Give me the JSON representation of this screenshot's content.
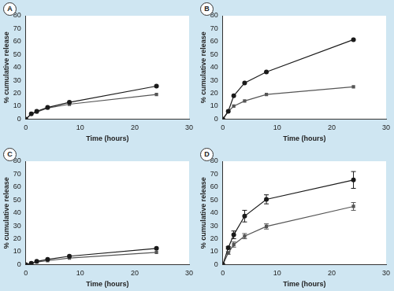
{
  "chart_data": [
    {
      "type": "line",
      "title": "A",
      "x_label": "Time (hours)",
      "y_label": "% cumulative release",
      "x": [
        0,
        1,
        2,
        4,
        8,
        24
      ],
      "xlim": [
        0,
        30
      ],
      "xticks": [
        0,
        10,
        20,
        30
      ],
      "ylim": [
        0,
        80
      ],
      "yticks": [
        0,
        10,
        20,
        30,
        40,
        50,
        60,
        70,
        80
      ],
      "grid": false,
      "series": [
        {
          "color": "#1a1a1a",
          "marker": "circle",
          "values": [
            0,
            4,
            6,
            9,
            13,
            25.5
          ]
        },
        {
          "color": "#555555",
          "marker": "square",
          "values": [
            0,
            4,
            5.5,
            8.5,
            11.5,
            19
          ]
        }
      ]
    },
    {
      "type": "line",
      "title": "B",
      "x_label": "Time (hours)",
      "y_label": "% cumulative release",
      "x": [
        0,
        1,
        2,
        4,
        8,
        24
      ],
      "xlim": [
        0,
        30
      ],
      "xticks": [
        0,
        10,
        20,
        30
      ],
      "ylim": [
        0,
        80
      ],
      "yticks": [
        0,
        10,
        20,
        30,
        40,
        50,
        60,
        70,
        80
      ],
      "grid": false,
      "series": [
        {
          "color": "#1a1a1a",
          "marker": "circle",
          "values": [
            0,
            6,
            18,
            28,
            36.5,
            61.5
          ]
        },
        {
          "color": "#555555",
          "marker": "square",
          "values": [
            0,
            6,
            10,
            14,
            19,
            25
          ]
        }
      ]
    },
    {
      "type": "line",
      "title": "C",
      "x_label": "Time (hours)",
      "y_label": "% cumulative release",
      "x": [
        0,
        1,
        2,
        4,
        8,
        24
      ],
      "xlim": [
        0,
        30
      ],
      "xticks": [
        0,
        10,
        20,
        30
      ],
      "ylim": [
        0,
        80
      ],
      "yticks": [
        0,
        10,
        20,
        30,
        40,
        50,
        60,
        70,
        80
      ],
      "grid": false,
      "series": [
        {
          "color": "#1a1a1a",
          "marker": "circle",
          "values": [
            0,
            1,
            2.5,
            4,
            6.5,
            12.5
          ]
        },
        {
          "color": "#555555",
          "marker": "square",
          "values": [
            0,
            1,
            2,
            3,
            5,
            9.5
          ]
        }
      ]
    },
    {
      "type": "line",
      "title": "D",
      "x_label": "Time (hours)",
      "y_label": "% cumulative release",
      "x": [
        0,
        1,
        2,
        4,
        8,
        24
      ],
      "xlim": [
        0,
        30
      ],
      "xticks": [
        0,
        10,
        20,
        30
      ],
      "ylim": [
        0,
        80
      ],
      "yticks": [
        0,
        10,
        20,
        30,
        40,
        50,
        60,
        70,
        80
      ],
      "grid": false,
      "series": [
        {
          "color": "#1a1a1a",
          "marker": "circle",
          "values": [
            0,
            13,
            23,
            37.5,
            50.5,
            65.5
          ],
          "errors": [
            0,
            1,
            3,
            4.5,
            3.5,
            6.5
          ]
        },
        {
          "color": "#555555",
          "marker": "square",
          "values": [
            0,
            9,
            15.5,
            22,
            29.5,
            45
          ],
          "errors": [
            0,
            1,
            2,
            2,
            2,
            3
          ]
        }
      ]
    }
  ]
}
